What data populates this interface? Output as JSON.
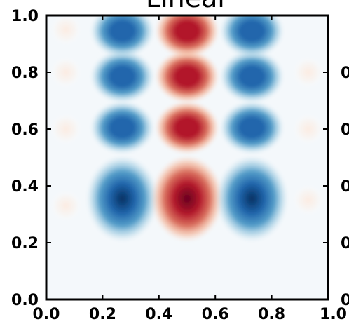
{
  "chart_data": {
    "type": "heatmap",
    "title": "Linear",
    "xlabel": "",
    "ylabel": "",
    "xlim": [
      0.0,
      1.0
    ],
    "ylim": [
      0.0,
      1.0
    ],
    "x_ticks": [
      "0.0",
      "0.2",
      "0.4",
      "0.6",
      "0.8",
      "1.0"
    ],
    "y_ticks": [
      "0.0",
      "0.2",
      "0.4",
      "0.6",
      "0.8",
      "1.0"
    ],
    "right_edge_labels": [
      "0",
      "0",
      "0",
      "0",
      "0"
    ],
    "colormap": "RdBu_r",
    "colors": {
      "negative": "#053061",
      "neutral": "#f7f7f7",
      "positive": "#67001f"
    },
    "grid": false,
    "blobs": [
      {
        "x": 0.27,
        "y": 0.355,
        "value": -1.0
      },
      {
        "x": 0.5,
        "y": 0.355,
        "value": 1.0
      },
      {
        "x": 0.73,
        "y": 0.355,
        "value": -1.0
      },
      {
        "x": 0.27,
        "y": 0.605,
        "value": -0.8
      },
      {
        "x": 0.5,
        "y": 0.605,
        "value": 0.85
      },
      {
        "x": 0.73,
        "y": 0.605,
        "value": -0.8
      },
      {
        "x": 0.27,
        "y": 0.785,
        "value": -0.85
      },
      {
        "x": 0.5,
        "y": 0.785,
        "value": 0.85
      },
      {
        "x": 0.73,
        "y": 0.785,
        "value": -0.85
      },
      {
        "x": 0.27,
        "y": 0.945,
        "value": -0.75
      },
      {
        "x": 0.5,
        "y": 0.945,
        "value": 0.85
      },
      {
        "x": 0.73,
        "y": 0.945,
        "value": -0.75
      },
      {
        "x": 0.07,
        "y": 0.33,
        "value": 0.06
      },
      {
        "x": 0.07,
        "y": 0.6,
        "value": 0.05
      },
      {
        "x": 0.07,
        "y": 0.8,
        "value": 0.04
      },
      {
        "x": 0.07,
        "y": 0.95,
        "value": 0.04
      },
      {
        "x": 0.93,
        "y": 0.35,
        "value": 0.06
      },
      {
        "x": 0.93,
        "y": 0.6,
        "value": 0.05
      },
      {
        "x": 0.93,
        "y": 0.8,
        "value": 0.04
      }
    ]
  }
}
